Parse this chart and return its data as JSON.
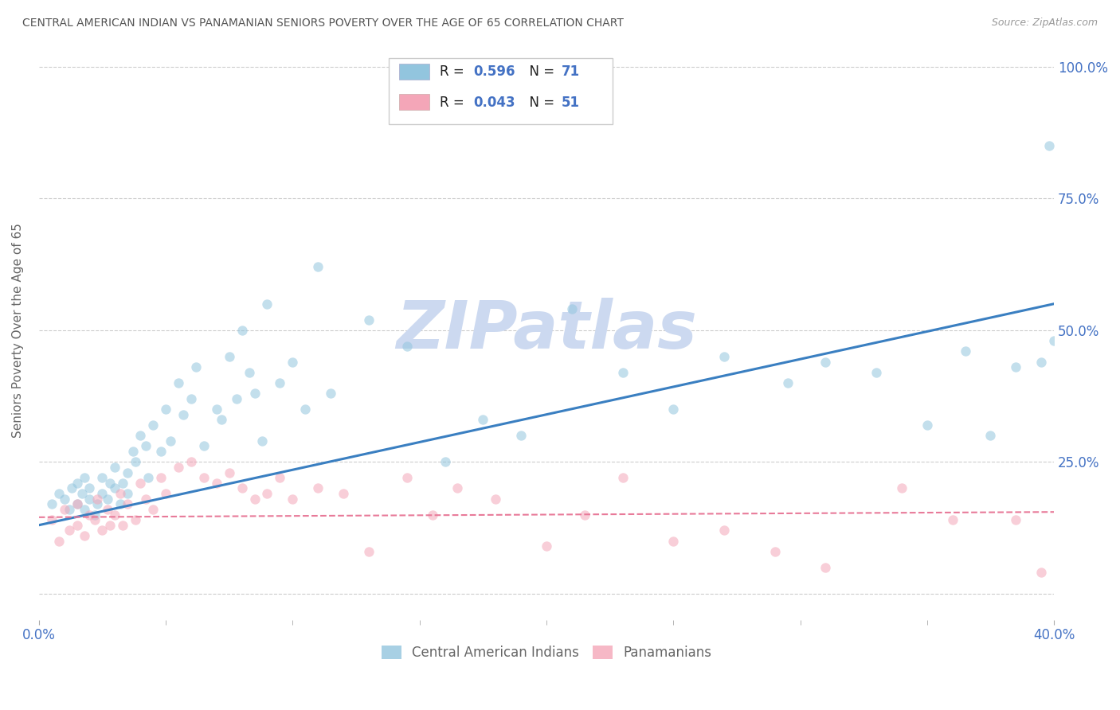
{
  "title": "CENTRAL AMERICAN INDIAN VS PANAMANIAN SENIORS POVERTY OVER THE AGE OF 65 CORRELATION CHART",
  "source": "Source: ZipAtlas.com",
  "ylabel": "Seniors Poverty Over the Age of 65",
  "legend_blue_group": "Central American Indians",
  "legend_pink_group": "Panamanians",
  "watermark": "ZIPatlas",
  "blue_color": "#92c5de",
  "pink_color": "#f4a6b8",
  "blue_line_color": "#3a7fc1",
  "pink_line_color": "#e87a99",
  "xlim": [
    0.0,
    0.4
  ],
  "ylim": [
    -0.05,
    1.05
  ],
  "xtick_positions": [
    0.0,
    0.4
  ],
  "xtick_labels": [
    "0.0%",
    "40.0%"
  ],
  "xtick_minor_positions": [
    0.05,
    0.1,
    0.15,
    0.2,
    0.25,
    0.3,
    0.35
  ],
  "ytick_positions": [
    0.0,
    0.25,
    0.5,
    0.75,
    1.0
  ],
  "ytick_labels_right": [
    "",
    "25.0%",
    "50.0%",
    "75.0%",
    "100.0%"
  ],
  "blue_scatter_x": [
    0.005,
    0.008,
    0.01,
    0.012,
    0.013,
    0.015,
    0.015,
    0.017,
    0.018,
    0.018,
    0.02,
    0.02,
    0.022,
    0.023,
    0.025,
    0.025,
    0.027,
    0.028,
    0.03,
    0.03,
    0.032,
    0.033,
    0.035,
    0.035,
    0.037,
    0.038,
    0.04,
    0.042,
    0.043,
    0.045,
    0.048,
    0.05,
    0.052,
    0.055,
    0.057,
    0.06,
    0.062,
    0.065,
    0.07,
    0.072,
    0.075,
    0.078,
    0.08,
    0.083,
    0.085,
    0.088,
    0.09,
    0.095,
    0.1,
    0.105,
    0.11,
    0.115,
    0.13,
    0.145,
    0.16,
    0.175,
    0.19,
    0.21,
    0.23,
    0.25,
    0.27,
    0.295,
    0.31,
    0.33,
    0.35,
    0.365,
    0.375,
    0.385,
    0.395,
    0.398,
    0.4
  ],
  "blue_scatter_y": [
    0.17,
    0.19,
    0.18,
    0.16,
    0.2,
    0.17,
    0.21,
    0.19,
    0.16,
    0.22,
    0.18,
    0.2,
    0.15,
    0.17,
    0.19,
    0.22,
    0.18,
    0.21,
    0.2,
    0.24,
    0.17,
    0.21,
    0.19,
    0.23,
    0.27,
    0.25,
    0.3,
    0.28,
    0.22,
    0.32,
    0.27,
    0.35,
    0.29,
    0.4,
    0.34,
    0.37,
    0.43,
    0.28,
    0.35,
    0.33,
    0.45,
    0.37,
    0.5,
    0.42,
    0.38,
    0.29,
    0.55,
    0.4,
    0.44,
    0.35,
    0.62,
    0.38,
    0.52,
    0.47,
    0.25,
    0.33,
    0.3,
    0.54,
    0.42,
    0.35,
    0.45,
    0.4,
    0.44,
    0.42,
    0.32,
    0.46,
    0.3,
    0.43,
    0.44,
    0.85,
    0.48
  ],
  "pink_scatter_x": [
    0.005,
    0.008,
    0.01,
    0.012,
    0.015,
    0.015,
    0.018,
    0.02,
    0.022,
    0.023,
    0.025,
    0.027,
    0.028,
    0.03,
    0.032,
    0.033,
    0.035,
    0.038,
    0.04,
    0.042,
    0.045,
    0.048,
    0.05,
    0.055,
    0.06,
    0.065,
    0.07,
    0.075,
    0.08,
    0.085,
    0.09,
    0.095,
    0.1,
    0.11,
    0.12,
    0.13,
    0.145,
    0.155,
    0.165,
    0.18,
    0.2,
    0.215,
    0.23,
    0.25,
    0.27,
    0.29,
    0.31,
    0.34,
    0.36,
    0.385,
    0.395
  ],
  "pink_scatter_y": [
    0.14,
    0.1,
    0.16,
    0.12,
    0.13,
    0.17,
    0.11,
    0.15,
    0.14,
    0.18,
    0.12,
    0.16,
    0.13,
    0.15,
    0.19,
    0.13,
    0.17,
    0.14,
    0.21,
    0.18,
    0.16,
    0.22,
    0.19,
    0.24,
    0.25,
    0.22,
    0.21,
    0.23,
    0.2,
    0.18,
    0.19,
    0.22,
    0.18,
    0.2,
    0.19,
    0.08,
    0.22,
    0.15,
    0.2,
    0.18,
    0.09,
    0.15,
    0.22,
    0.1,
    0.12,
    0.08,
    0.05,
    0.2,
    0.14,
    0.14,
    0.04
  ],
  "blue_trend_x": [
    0.0,
    0.4
  ],
  "blue_trend_y": [
    0.13,
    0.55
  ],
  "pink_trend_x": [
    0.0,
    0.4
  ],
  "pink_trend_y": [
    0.145,
    0.155
  ],
  "background_color": "#ffffff",
  "grid_color": "#cccccc",
  "title_color": "#555555",
  "axis_label_color": "#666666",
  "tick_label_color": "#4472c4",
  "source_color": "#999999",
  "watermark_color": "#ccd9f0",
  "marker_size": 80,
  "marker_alpha": 0.55,
  "legend_r_label": "R = ",
  "legend_n_label": "N = ",
  "legend_r_blue_val": "0.596",
  "legend_n_blue_val": "71",
  "legend_r_pink_val": "0.043",
  "legend_n_pink_val": "51",
  "legend_text_color": "#222222",
  "legend_val_color": "#4472c4",
  "legend_n_val_color": "#e07c3a"
}
